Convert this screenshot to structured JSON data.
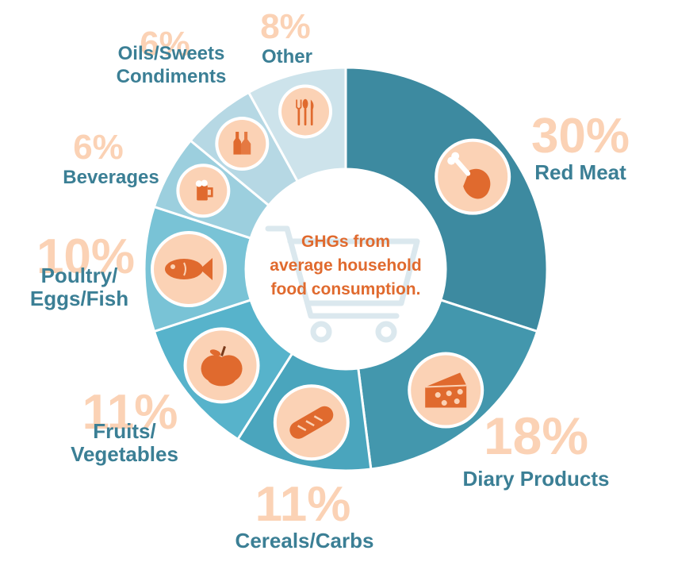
{
  "chart_data": {
    "type": "pie",
    "center_label": [
      "GHGs from",
      "average household",
      "food consumption."
    ],
    "slices": [
      {
        "label": "Red Meat",
        "value": 30,
        "display": "30%",
        "color": "#3d8aa0",
        "icon": "chicken-leg-icon"
      },
      {
        "label": "Diary Products",
        "value": 18,
        "display": "18%",
        "color": "#4397ad",
        "icon": "cheese-icon"
      },
      {
        "label": "Cereals/Carbs",
        "value": 11,
        "display": "11%",
        "color": "#4aa5bd",
        "icon": "bread-icon"
      },
      {
        "label": "Fruits/\nVegetables",
        "value": 11,
        "display": "11%",
        "color": "#57b3cb",
        "icon": "apple-icon"
      },
      {
        "label": "Poultry/\nEggs/Fish",
        "value": 10,
        "display": "10%",
        "color": "#79c3d6",
        "icon": "fish-icon"
      },
      {
        "label": "Beverages",
        "value": 6,
        "display": "6%",
        "color": "#9ccfde",
        "icon": "beer-mug-icon"
      },
      {
        "label": "Oils/Sweets\nCondiments",
        "value": 6,
        "display": "6%",
        "color": "#b6d8e4",
        "icon": "bottles-icon"
      },
      {
        "label": "Other",
        "value": 8,
        "display": "8%",
        "color": "#cde3eb",
        "icon": "cutlery-icon"
      }
    ],
    "colors": {
      "percent": "#fbd2b5",
      "label": "#3b7f95",
      "icon_bg": "#fbd2b5",
      "icon": "#e06a2e",
      "center_text": "#e06a2e",
      "cart": "#dbe8ee"
    }
  }
}
